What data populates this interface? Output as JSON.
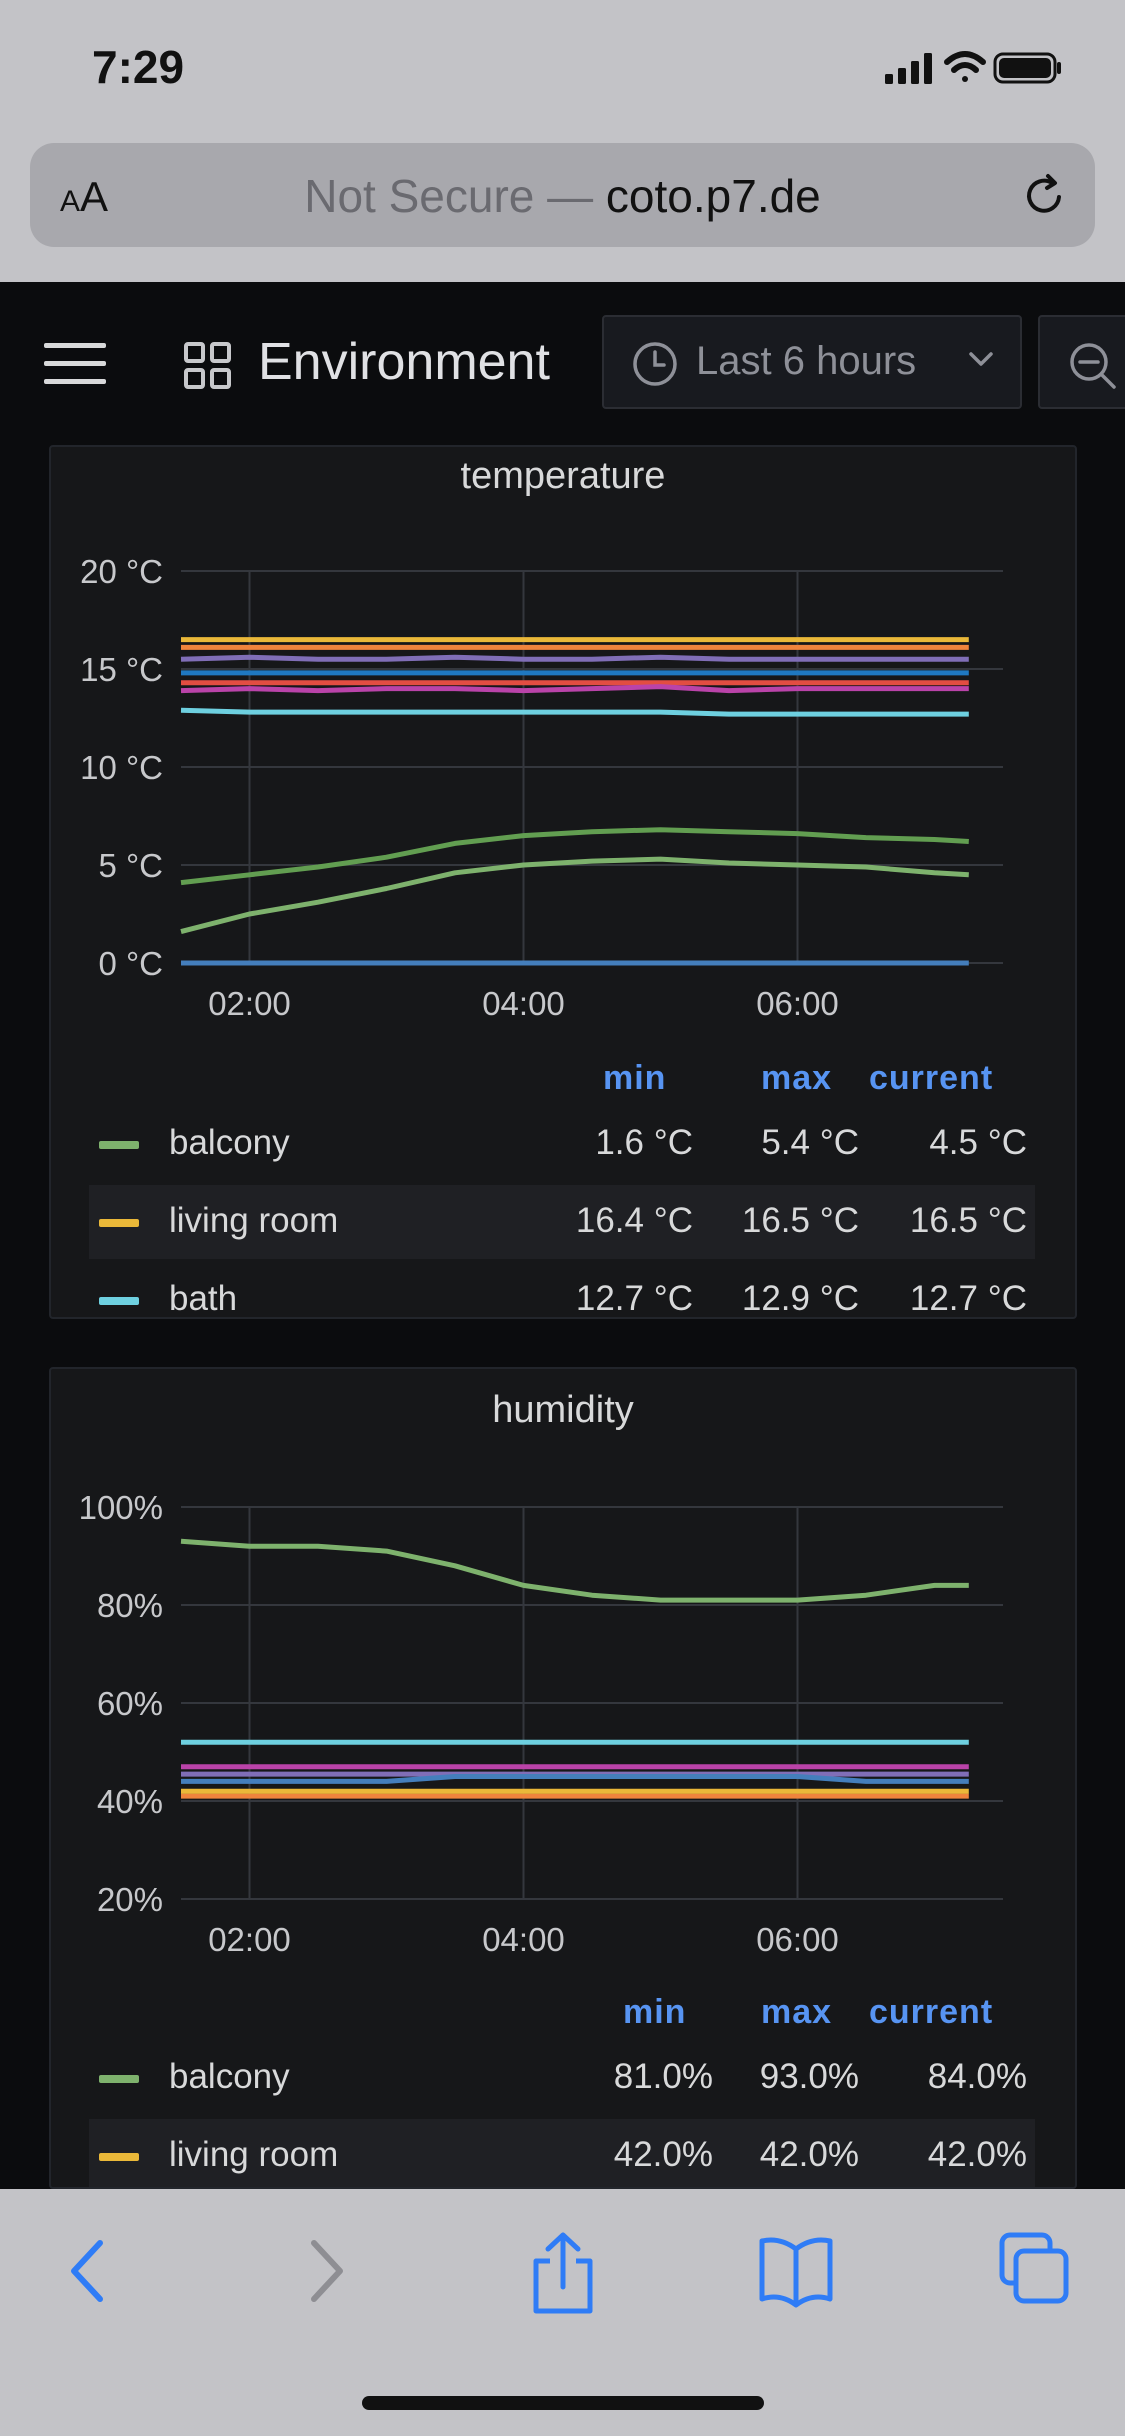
{
  "status_bar": {
    "time": "7:29"
  },
  "browser": {
    "aa_label_small": "A",
    "aa_label_big": "A",
    "url_prefix": "Not Secure — ",
    "url_host": "coto.p7.de"
  },
  "dashboard": {
    "title": "Environment",
    "time_range": "Last 6 hours"
  },
  "temperature_panel": {
    "title": "temperature",
    "legend_headers": {
      "min": "min",
      "max": "max",
      "current": "current"
    },
    "legend": [
      {
        "name": "balcony",
        "min": "1.6 °C",
        "max": "5.4 °C",
        "current": "4.5 °C",
        "color": "#7eb26d"
      },
      {
        "name": "living room",
        "min": "16.4 °C",
        "max": "16.5 °C",
        "current": "16.5 °C",
        "color": "#eab839"
      },
      {
        "name": "bath",
        "min": "12.7 °C",
        "max": "12.9 °C",
        "current": "12.7 °C",
        "color": "#6ed0e0"
      }
    ]
  },
  "humidity_panel": {
    "title": "humidity",
    "legend_headers": {
      "min": "min",
      "max": "max",
      "current": "current"
    },
    "legend": [
      {
        "name": "balcony",
        "min": "81.0%",
        "max": "93.0%",
        "current": "84.0%",
        "color": "#7eb26d"
      },
      {
        "name": "living room",
        "min": "42.0%",
        "max": "42.0%",
        "current": "42.0%",
        "color": "#eab839"
      }
    ]
  },
  "chart_data": [
    {
      "type": "line",
      "title": "temperature",
      "x_ticks": [
        "02:00",
        "04:00",
        "06:00"
      ],
      "y_ticks": [
        "0 °C",
        "5 °C",
        "10 °C",
        "15 °C",
        "20 °C"
      ],
      "ylim": [
        0,
        20
      ],
      "x": [
        "01:30",
        "02:00",
        "02:30",
        "03:00",
        "03:30",
        "04:00",
        "04:30",
        "05:00",
        "05:30",
        "06:00",
        "06:30",
        "07:00",
        "07:15"
      ],
      "series": [
        {
          "name": "balcony",
          "color": "#7eb26d",
          "values": [
            1.6,
            2.5,
            3.1,
            3.8,
            4.6,
            5.0,
            5.2,
            5.3,
            5.1,
            5.0,
            4.9,
            4.6,
            4.5
          ]
        },
        {
          "color": "#629e51",
          "values": [
            4.1,
            4.5,
            4.9,
            5.4,
            6.1,
            6.5,
            6.7,
            6.8,
            6.7,
            6.6,
            6.4,
            6.3,
            6.2
          ]
        },
        {
          "name": "living room",
          "color": "#eab839",
          "values": [
            16.5,
            16.5,
            16.5,
            16.5,
            16.5,
            16.5,
            16.5,
            16.5,
            16.5,
            16.5,
            16.5,
            16.5,
            16.5
          ]
        },
        {
          "color": "#ef843c",
          "values": [
            16.1,
            16.1,
            16.1,
            16.1,
            16.1,
            16.1,
            16.1,
            16.1,
            16.1,
            16.1,
            16.1,
            16.1,
            16.1
          ]
        },
        {
          "color": "#806eb7",
          "values": [
            15.5,
            15.6,
            15.5,
            15.5,
            15.6,
            15.5,
            15.5,
            15.6,
            15.5,
            15.5,
            15.5,
            15.5,
            15.5
          ]
        },
        {
          "color": "#1f78c1",
          "values": [
            14.8,
            14.8,
            14.8,
            14.8,
            14.8,
            14.8,
            14.8,
            14.8,
            14.8,
            14.8,
            14.8,
            14.8,
            14.8
          ]
        },
        {
          "color": "#e24d42",
          "values": [
            14.3,
            14.3,
            14.3,
            14.3,
            14.3,
            14.3,
            14.3,
            14.3,
            14.3,
            14.3,
            14.3,
            14.3,
            14.3
          ]
        },
        {
          "color": "#ba43a9",
          "values": [
            13.9,
            14.0,
            13.9,
            14.0,
            14.0,
            13.9,
            14.0,
            14.1,
            13.9,
            14.0,
            14.0,
            14.0,
            14.0
          ]
        },
        {
          "name": "bath",
          "color": "#6ed0e0",
          "values": [
            12.9,
            12.8,
            12.8,
            12.8,
            12.8,
            12.8,
            12.8,
            12.8,
            12.7,
            12.7,
            12.7,
            12.7,
            12.7
          ]
        },
        {
          "color": "#447ebc",
          "values": [
            0,
            0,
            0,
            0,
            0,
            0,
            0,
            0,
            0,
            0,
            0,
            0,
            0
          ]
        }
      ]
    },
    {
      "type": "line",
      "title": "humidity",
      "x_ticks": [
        "02:00",
        "04:00",
        "06:00"
      ],
      "y_ticks": [
        "20%",
        "40%",
        "60%",
        "80%",
        "100%"
      ],
      "ylim": [
        20,
        100
      ],
      "x": [
        "01:30",
        "02:00",
        "02:30",
        "03:00",
        "03:30",
        "04:00",
        "04:30",
        "05:00",
        "05:30",
        "06:00",
        "06:30",
        "07:00",
        "07:15"
      ],
      "series": [
        {
          "name": "balcony",
          "color": "#7eb26d",
          "values": [
            93,
            92,
            92,
            91,
            88,
            84,
            82,
            81,
            81,
            81,
            82,
            84,
            84
          ]
        },
        {
          "color": "#6ed0e0",
          "values": [
            52,
            52,
            52,
            52,
            52,
            52,
            52,
            52,
            52,
            52,
            52,
            52,
            52
          ]
        },
        {
          "color": "#ba43a9",
          "values": [
            47,
            47,
            47,
            47,
            47,
            47,
            47,
            47,
            47,
            47,
            47,
            47,
            47
          ]
        },
        {
          "color": "#806eb7",
          "values": [
            45.5,
            45.5,
            45.5,
            45.5,
            45.5,
            45.5,
            45.5,
            45.5,
            45.5,
            45.5,
            45.5,
            45.5,
            45.5
          ]
        },
        {
          "color": "#447ebc",
          "values": [
            44,
            44,
            44,
            44,
            45,
            45,
            45,
            45,
            45,
            45,
            44,
            44,
            44
          ]
        },
        {
          "color": "#ef843c",
          "values": [
            41,
            41,
            41,
            41,
            41,
            41,
            41,
            41,
            41,
            41,
            41,
            41,
            41
          ]
        },
        {
          "name": "living room",
          "color": "#eab839",
          "values": [
            42,
            42,
            42,
            42,
            42,
            42,
            42,
            42,
            42,
            42,
            42,
            42,
            42
          ]
        }
      ]
    }
  ]
}
